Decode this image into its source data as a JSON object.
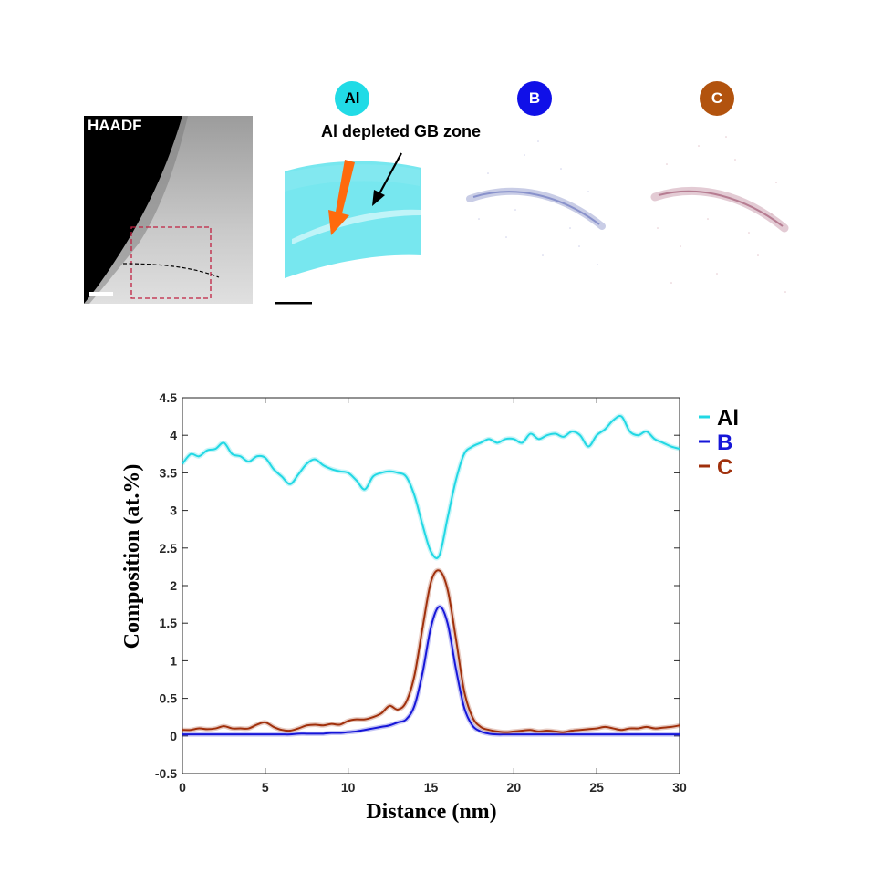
{
  "figure": {
    "haadf_label": "HAADF",
    "annotation": "Al depleted GB zone",
    "element_badges": [
      {
        "label": "Al",
        "color": "#21dbe6",
        "text_color": "#000000"
      },
      {
        "label": "B",
        "color": "#1010e8",
        "text_color": "#ffffff"
      },
      {
        "label": "C",
        "color": "#b2530e",
        "text_color": "#ffffff"
      }
    ],
    "map_colors": {
      "al": "#4fe0ea",
      "arrow": "#ff6a0c"
    }
  },
  "chart_data": {
    "type": "line",
    "xlabel": "Distance (nm)",
    "ylabel": "Composition (at.%)",
    "xlim": [
      0,
      30
    ],
    "ylim": [
      -0.5,
      4.5
    ],
    "xticks": [
      "0",
      "5",
      "10",
      "15",
      "20",
      "25",
      "30"
    ],
    "yticks": [
      "-0.5",
      "0",
      "0.5",
      "1",
      "1.5",
      "2",
      "2.5",
      "3",
      "3.5",
      "4",
      "4.5"
    ],
    "grid": false,
    "legend_position": "right-top",
    "x": [
      0,
      0.5,
      1,
      1.5,
      2,
      2.5,
      3,
      3.5,
      4,
      4.5,
      5,
      5.5,
      6,
      6.5,
      7,
      7.5,
      8,
      8.5,
      9,
      9.5,
      10,
      10.5,
      11,
      11.5,
      12,
      12.5,
      13,
      13.5,
      14,
      14.5,
      15,
      15.5,
      16,
      16.5,
      17,
      17.5,
      18,
      18.5,
      19,
      19.5,
      20,
      20.5,
      21,
      21.5,
      22,
      22.5,
      23,
      23.5,
      24,
      24.5,
      25,
      25.5,
      26,
      26.5,
      27,
      27.5,
      28,
      28.5,
      29,
      29.5,
      30
    ],
    "series": [
      {
        "name": "Al",
        "color": "#21d8e4",
        "values": [
          3.62,
          3.75,
          3.72,
          3.8,
          3.82,
          3.9,
          3.75,
          3.72,
          3.65,
          3.72,
          3.7,
          3.55,
          3.45,
          3.35,
          3.48,
          3.62,
          3.68,
          3.6,
          3.55,
          3.52,
          3.5,
          3.4,
          3.28,
          3.45,
          3.5,
          3.52,
          3.5,
          3.45,
          3.2,
          2.8,
          2.45,
          2.4,
          2.9,
          3.4,
          3.75,
          3.85,
          3.9,
          3.95,
          3.9,
          3.95,
          3.95,
          3.9,
          4.02,
          3.95,
          4.0,
          4.02,
          3.98,
          4.05,
          4.0,
          3.85,
          4.0,
          4.08,
          4.2,
          4.25,
          4.05,
          4.0,
          4.05,
          3.95,
          3.9,
          3.85,
          3.82
        ]
      },
      {
        "name": "B",
        "color": "#1616d8",
        "values": [
          0.02,
          0.02,
          0.02,
          0.02,
          0.02,
          0.02,
          0.02,
          0.02,
          0.02,
          0.02,
          0.02,
          0.02,
          0.02,
          0.02,
          0.03,
          0.03,
          0.03,
          0.03,
          0.04,
          0.04,
          0.05,
          0.06,
          0.08,
          0.1,
          0.12,
          0.14,
          0.18,
          0.22,
          0.4,
          0.85,
          1.45,
          1.72,
          1.5,
          0.9,
          0.38,
          0.14,
          0.06,
          0.03,
          0.02,
          0.02,
          0.02,
          0.02,
          0.02,
          0.02,
          0.02,
          0.02,
          0.02,
          0.02,
          0.02,
          0.02,
          0.02,
          0.02,
          0.02,
          0.02,
          0.02,
          0.02,
          0.02,
          0.02,
          0.02,
          0.02,
          0.02
        ]
      },
      {
        "name": "C",
        "color": "#a0300c",
        "values": [
          0.08,
          0.08,
          0.1,
          0.09,
          0.1,
          0.13,
          0.1,
          0.1,
          0.1,
          0.15,
          0.18,
          0.12,
          0.08,
          0.07,
          0.1,
          0.14,
          0.15,
          0.14,
          0.16,
          0.15,
          0.2,
          0.22,
          0.22,
          0.25,
          0.3,
          0.4,
          0.35,
          0.45,
          0.8,
          1.45,
          2.05,
          2.2,
          1.95,
          1.3,
          0.6,
          0.25,
          0.12,
          0.08,
          0.06,
          0.05,
          0.06,
          0.07,
          0.08,
          0.06,
          0.07,
          0.06,
          0.05,
          0.07,
          0.08,
          0.09,
          0.1,
          0.12,
          0.1,
          0.08,
          0.1,
          0.1,
          0.12,
          0.1,
          0.11,
          0.12,
          0.14
        ]
      }
    ]
  }
}
